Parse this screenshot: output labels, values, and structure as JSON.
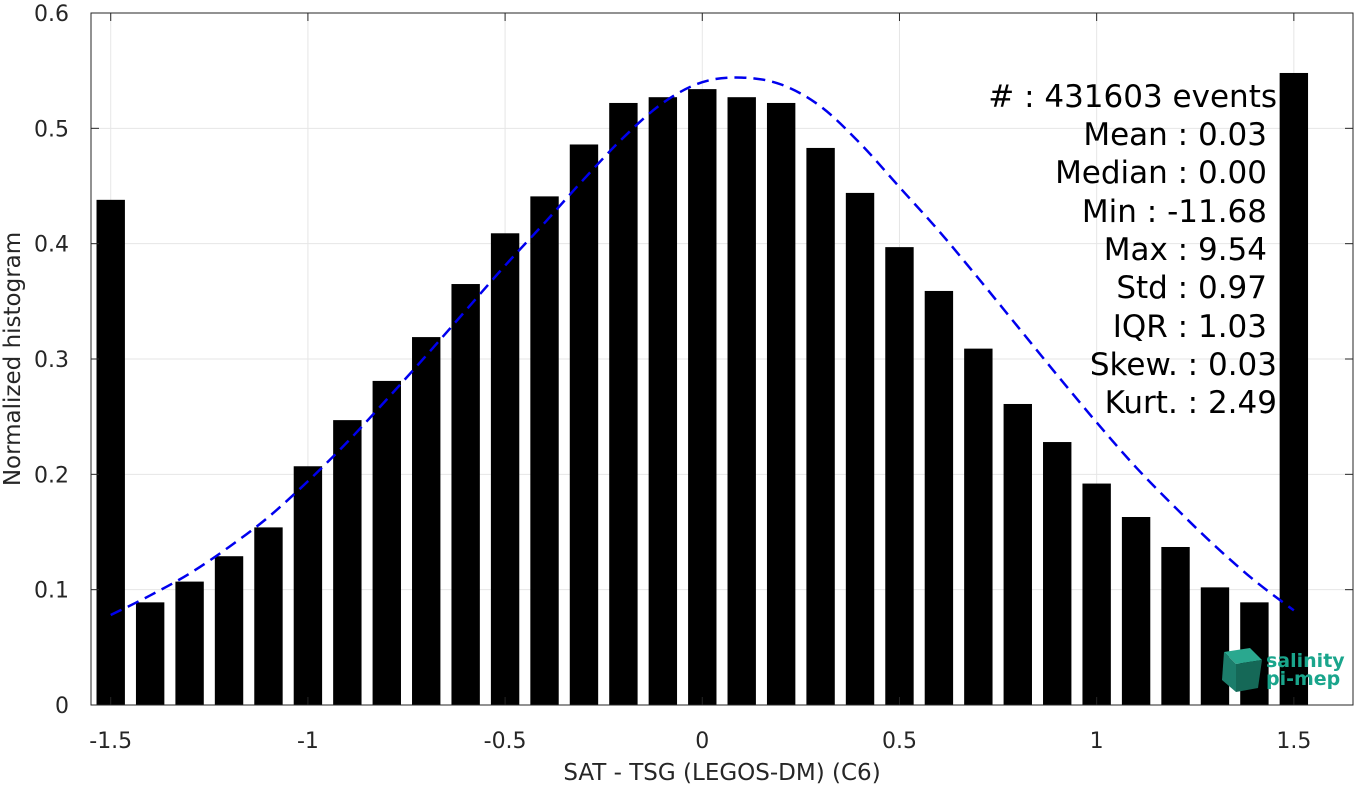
{
  "chart_data": {
    "type": "bar",
    "xlabel": "SAT - TSG (LEGOS-DM) (C6)",
    "ylabel": "Normalized histogram",
    "xlim": [
      -1.55,
      1.65
    ],
    "ylim": [
      0,
      0.6
    ],
    "x_ticks": [
      -1.5,
      -1,
      -0.5,
      0,
      0.5,
      1,
      1.5
    ],
    "x_tick_labels": [
      "-1.5",
      "-1",
      "-0.5",
      "0",
      "0.5",
      "1",
      "1.5"
    ],
    "y_ticks": [
      0,
      0.1,
      0.2,
      0.3,
      0.4,
      0.5,
      0.6
    ],
    "y_tick_labels": [
      "0",
      "0.1",
      "0.2",
      "0.3",
      "0.4",
      "0.5",
      "0.6"
    ],
    "grid": true,
    "bar_color": "#000000",
    "fit_color": "#0000ee",
    "x": [
      -1.5,
      -1.4,
      -1.3,
      -1.2,
      -1.1,
      -1.0,
      -0.9,
      -0.8,
      -0.7,
      -0.6,
      -0.5,
      -0.4,
      -0.3,
      -0.2,
      -0.1,
      0.0,
      0.1,
      0.2,
      0.3,
      0.4,
      0.5,
      0.6,
      0.7,
      0.8,
      0.9,
      1.0,
      1.1,
      1.2,
      1.3,
      1.4,
      1.5
    ],
    "values": [
      0.438,
      0.089,
      0.107,
      0.129,
      0.154,
      0.207,
      0.247,
      0.281,
      0.319,
      0.365,
      0.409,
      0.441,
      0.486,
      0.522,
      0.527,
      0.534,
      0.527,
      0.522,
      0.483,
      0.444,
      0.397,
      0.359,
      0.309,
      0.261,
      0.228,
      0.192,
      0.163,
      0.137,
      0.102,
      0.089,
      0.548
    ],
    "fit_curve": {
      "style": "dashed",
      "x": [
        -1.5,
        -1.4,
        -1.3,
        -1.2,
        -1.1,
        -1.0,
        -0.9,
        -0.8,
        -0.7,
        -0.6,
        -0.5,
        -0.4,
        -0.3,
        -0.2,
        -0.1,
        0.0,
        0.1,
        0.2,
        0.3,
        0.4,
        0.5,
        0.6,
        0.7,
        0.8,
        0.9,
        1.0,
        1.1,
        1.2,
        1.3,
        1.4,
        1.5
      ],
      "y": [
        0.078,
        0.095,
        0.114,
        0.137,
        0.163,
        0.194,
        0.228,
        0.265,
        0.303,
        0.342,
        0.381,
        0.418,
        0.456,
        0.492,
        0.522,
        0.54,
        0.544,
        0.538,
        0.519,
        0.487,
        0.449,
        0.411,
        0.37,
        0.328,
        0.286,
        0.245,
        0.206,
        0.171,
        0.138,
        0.108,
        0.082
      ]
    }
  },
  "stats": [
    {
      "text": "#  : 431603 events"
    },
    {
      "text": "Mean : 0.03"
    },
    {
      "text": "Median : 0.00"
    },
    {
      "text": "Min : -11.68"
    },
    {
      "text": "Max : 9.54"
    },
    {
      "text": "Std : 0.97"
    },
    {
      "text": "IQR : 1.03"
    },
    {
      "text": "Skew. : 0.03"
    },
    {
      "text": "Kurt. : 2.49"
    }
  ],
  "logo": {
    "line1": "salinity",
    "line2": "pi-mep",
    "color": "#1aa58c"
  }
}
